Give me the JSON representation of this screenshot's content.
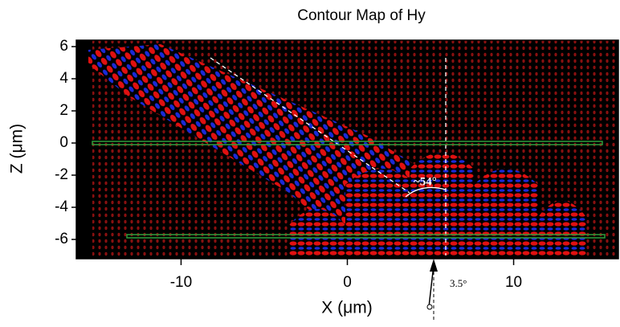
{
  "chart_data": {
    "type": "contour",
    "title": "Contour Map of Hy",
    "x_label": "X (μm)",
    "y_label": "Z (μm)",
    "xlim": [
      -16.3,
      16.3
    ],
    "ylim": [
      -7.2,
      6.4
    ],
    "xticks": [
      -10,
      0,
      10
    ],
    "yticks": [
      6,
      4,
      2,
      0,
      -2,
      -4,
      -6
    ],
    "hlines": [
      0,
      -5.8
    ],
    "hline_color": "#2e9e3a",
    "annotations": [
      "~54°",
      "3.5°"
    ]
  }
}
